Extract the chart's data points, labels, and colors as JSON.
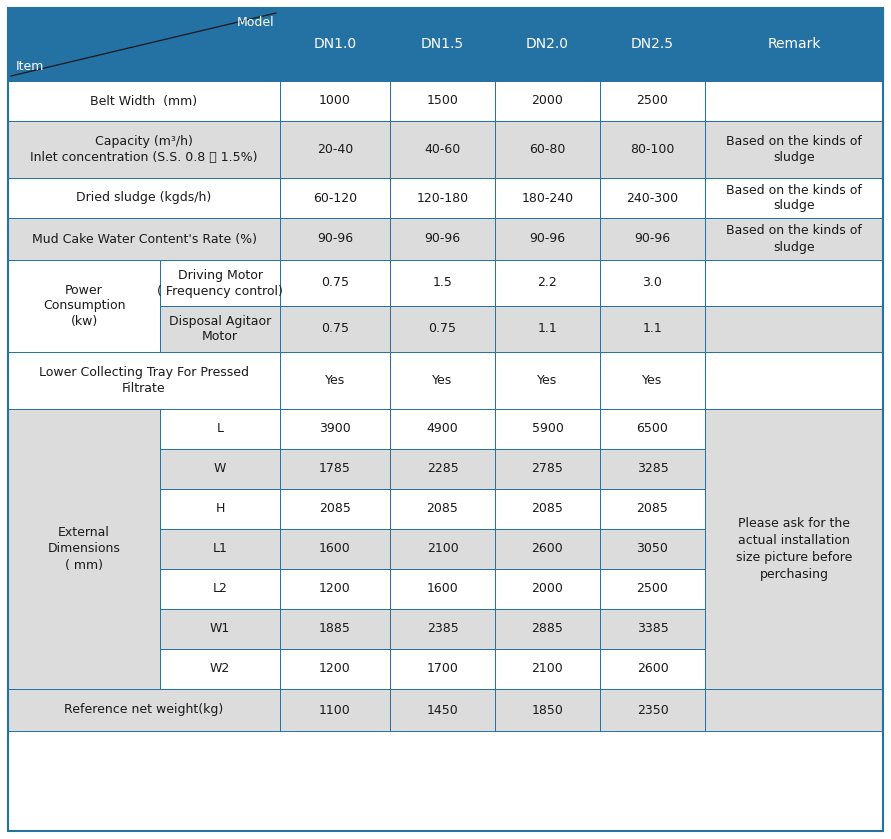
{
  "header_bg": "#2471A3",
  "header_text_color": "#FFFFFF",
  "row_bg_white": "#FFFFFF",
  "row_bg_gray": "#DCDCDC",
  "border_color": "#2471A3",
  "text_color": "#1A1A1A",
  "fig_w": 8.91,
  "fig_h": 8.39,
  "dpi": 100,
  "models": [
    "DN1.0",
    "DN1.5",
    "DN2.0",
    "DN2.5",
    "Remark"
  ],
  "ext_remark": "Please ask for the\nactual installation\nsize picture before\nperchasing",
  "rows": [
    {
      "left_label": "Belt Width  (mm)",
      "sub_label": "",
      "span": true,
      "values": [
        "1000",
        "1500",
        "2000",
        "2500",
        ""
      ],
      "bg": "white",
      "bold": false,
      "remark": ""
    },
    {
      "left_label": "Capacity (m³/h)\nInlet concentration (S.S. 0.8 ～ 1.5%)",
      "sub_label": "",
      "span": true,
      "values": [
        "20-40",
        "40-60",
        "60-80",
        "80-100",
        "Based on the kinds of\nsludge"
      ],
      "bg": "gray",
      "bold": false,
      "remark": "Based on the kinds of\nsludge"
    },
    {
      "left_label": "Dried sludge (kgds/h)",
      "sub_label": "",
      "span": true,
      "values": [
        "60-120",
        "120-180",
        "180-240",
        "240-300",
        ""
      ],
      "bg": "white",
      "bold": false,
      "remark": "Based on the kinds of\nsludge"
    },
    {
      "left_label": "Mud Cake Water Content's Rate (%)",
      "sub_label": "",
      "span": true,
      "values": [
        "90-96",
        "90-96",
        "90-96",
        "90-96",
        ""
      ],
      "bg": "gray",
      "bold": false,
      "remark": "Based on the kinds of\nsludge"
    },
    {
      "left_label": "Power\nConsumption\n(kw)",
      "sub_label": "Driving Motor\n( Frequency control)",
      "span": false,
      "values": [
        "0.75",
        "1.5",
        "2.2",
        "3.0",
        ""
      ],
      "bg": "white",
      "bold": false,
      "remark": ""
    },
    {
      "left_label": "Power\nConsumption\n(kw)",
      "sub_label": "Disposal Agitaor\nMotor",
      "span": false,
      "values": [
        "0.75",
        "0.75",
        "1.1",
        "1.1",
        ""
      ],
      "bg": "gray",
      "bold": false,
      "remark": ""
    },
    {
      "left_label": "Lower Collecting Tray For Pressed\nFiltrate",
      "sub_label": "",
      "span": true,
      "values": [
        "Yes",
        "Yes",
        "Yes",
        "Yes",
        ""
      ],
      "bg": "white",
      "bold": false,
      "remark": ""
    },
    {
      "left_label": "External\nDimensions\n( mm)",
      "sub_label": "L",
      "span": false,
      "values": [
        "3900",
        "4900",
        "5900",
        "6500",
        ""
      ],
      "bg": "white",
      "bold": false,
      "remark": ""
    },
    {
      "left_label": "External\nDimensions\n( mm)",
      "sub_label": "W",
      "span": false,
      "values": [
        "1785",
        "2285",
        "2785",
        "3285",
        ""
      ],
      "bg": "gray",
      "bold": false,
      "remark": ""
    },
    {
      "left_label": "External\nDimensions\n( mm)",
      "sub_label": "H",
      "span": false,
      "values": [
        "2085",
        "2085",
        "2085",
        "2085",
        ""
      ],
      "bg": "white",
      "bold": false,
      "remark": ""
    },
    {
      "left_label": "External\nDimensions\n( mm)",
      "sub_label": "L1",
      "span": false,
      "values": [
        "1600",
        "2100",
        "2600",
        "3050",
        ""
      ],
      "bg": "gray",
      "bold": false,
      "remark": ""
    },
    {
      "left_label": "External\nDimensions\n( mm)",
      "sub_label": "L2",
      "span": false,
      "values": [
        "1200",
        "1600",
        "2000",
        "2500",
        ""
      ],
      "bg": "white",
      "bold": false,
      "remark": ""
    },
    {
      "left_label": "External\nDimensions\n( mm)",
      "sub_label": "W1",
      "span": false,
      "values": [
        "1885",
        "2385",
        "2885",
        "3385",
        ""
      ],
      "bg": "gray",
      "bold": false,
      "remark": ""
    },
    {
      "left_label": "External\nDimensions\n( mm)",
      "sub_label": "W2",
      "span": false,
      "values": [
        "1200",
        "1700",
        "2100",
        "2600",
        ""
      ],
      "bg": "white",
      "bold": false,
      "remark": ""
    },
    {
      "left_label": "Reference net weight(kg)",
      "sub_label": "",
      "span": true,
      "values": [
        "1100",
        "1450",
        "1850",
        "2350",
        ""
      ],
      "bg": "gray",
      "bold": false,
      "remark": ""
    }
  ]
}
